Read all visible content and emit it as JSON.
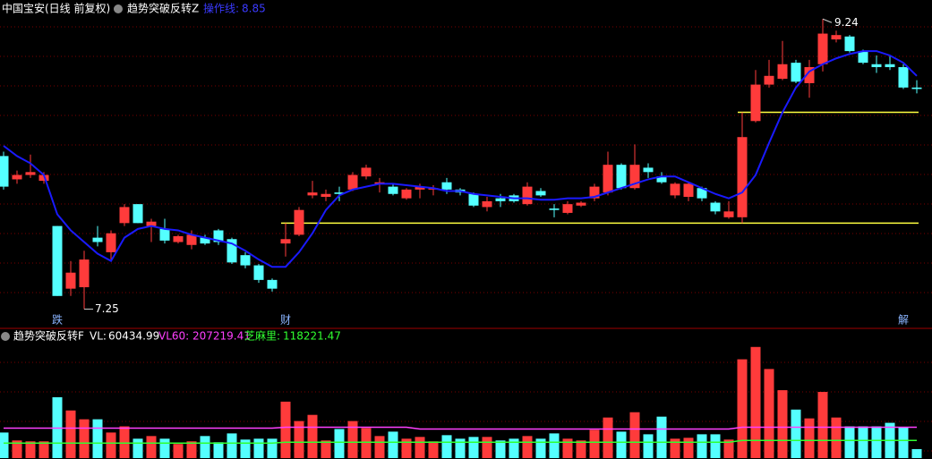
{
  "chart_data": [
    {
      "type": "candlestick",
      "title": "中国宝安(日线 前复权)",
      "indicator": "趋势突破反转Z",
      "categories": [
        null,
        null,
        null,
        null,
        "跌",
        null,
        null,
        null,
        null,
        null,
        null,
        null,
        null,
        null,
        null,
        null,
        null,
        null,
        null,
        null,
        null,
        "财",
        null,
        null,
        null,
        null,
        null,
        null,
        null,
        null,
        null,
        null,
        null,
        null,
        null,
        null,
        null,
        null,
        null,
        null,
        null,
        null,
        null,
        null,
        null,
        null,
        null,
        null,
        null,
        null,
        null,
        null,
        null,
        null,
        null,
        null,
        null,
        null,
        null,
        null,
        null,
        null,
        null,
        null,
        null,
        null,
        null,
        "解",
        null
      ],
      "open": [
        8.3,
        8.14,
        8.17,
        8.13,
        7.82,
        7.39,
        7.4,
        7.74,
        7.64,
        7.84,
        7.97,
        7.82,
        7.8,
        7.71,
        7.69,
        7.74,
        7.79,
        7.73,
        7.62,
        7.55,
        7.45,
        7.7,
        7.76,
        8.03,
        8.02,
        8.05,
        8.07,
        8.16,
        8.11,
        8.09,
        8.01,
        8.07,
        8.07,
        8.12,
        8.07,
        8.04,
        7.95,
        8.01,
        8.03,
        7.97,
        8.06,
        7.94,
        7.91,
        7.96,
        8.01,
        8.05,
        8.24,
        8.08,
        8.22,
        8.16,
        8.03,
        8.02,
        8.08,
        7.98,
        7.88,
        7.88,
        8.54,
        8.79,
        8.83,
        8.94,
        8.8,
        8.93,
        9.1,
        9.12,
        9.02,
        8.93,
        8.93,
        8.91,
        8.77
      ],
      "high": [
        8.33,
        8.2,
        8.31,
        8.19,
        7.82,
        7.58,
        7.65,
        7.82,
        7.79,
        7.97,
        7.97,
        7.87,
        7.87,
        7.76,
        7.79,
        7.76,
        7.8,
        7.74,
        7.64,
        7.56,
        7.46,
        7.84,
        7.95,
        8.13,
        8.07,
        8.09,
        8.19,
        8.24,
        8.15,
        8.11,
        8.08,
        8.11,
        8.1,
        8.15,
        8.08,
        8.05,
        8.02,
        8.04,
        8.04,
        8.12,
        8.08,
        7.97,
        7.99,
        7.99,
        8.11,
        8.33,
        8.25,
        8.38,
        8.25,
        8.19,
        8.12,
        8.12,
        8.09,
        7.99,
        7.99,
        8.6,
        8.89,
        8.96,
        9.09,
        8.96,
        8.96,
        9.24,
        9.16,
        9.13,
        9.03,
        8.99,
        8.99,
        8.93,
        8.82
      ],
      "low": [
        8.07,
        8.11,
        8.15,
        8.11,
        7.34,
        7.34,
        7.25,
        7.68,
        7.59,
        7.82,
        7.84,
        7.71,
        7.7,
        7.7,
        7.66,
        7.69,
        7.69,
        7.56,
        7.53,
        7.43,
        7.37,
        7.61,
        7.75,
        8.01,
        7.99,
        7.99,
        8.06,
        8.14,
        8.05,
        8.03,
        8.0,
        8.01,
        8.03,
        8.04,
        8.03,
        7.95,
        7.92,
        7.95,
        7.98,
        7.96,
        8.02,
        7.88,
        7.9,
        7.95,
        7.99,
        8.03,
        8.07,
        8.07,
        8.15,
        8.11,
        8.01,
        7.99,
        7.99,
        7.9,
        7.87,
        7.84,
        8.53,
        8.77,
        8.82,
        8.8,
        8.7,
        8.88,
        9.08,
        9.01,
        8.93,
        8.87,
        8.89,
        8.76,
        8.73
      ],
      "close": [
        8.09,
        8.17,
        8.19,
        8.17,
        7.34,
        7.5,
        7.59,
        7.71,
        7.77,
        7.95,
        7.84,
        7.85,
        7.72,
        7.75,
        7.76,
        7.7,
        7.71,
        7.57,
        7.55,
        7.45,
        7.39,
        7.73,
        7.93,
        8.05,
        8.04,
        8.04,
        8.17,
        8.22,
        8.12,
        8.04,
        8.07,
        8.09,
        8.08,
        8.07,
        8.05,
        7.96,
        7.99,
        7.99,
        7.99,
        8.09,
        8.03,
        7.93,
        7.97,
        7.98,
        8.09,
        8.24,
        8.08,
        8.24,
        8.19,
        8.12,
        8.11,
        8.11,
        8.01,
        7.92,
        7.92,
        8.43,
        8.79,
        8.85,
        8.93,
        8.81,
        8.91,
        9.14,
        9.13,
        9.02,
        8.94,
        8.91,
        8.91,
        8.77,
        8.76
      ],
      "up_color": "#ff3b3b",
      "down_color": "#54ffff",
      "lines": [
        {
          "name": "操作线:",
          "color": "#1a1aff",
          "values": [
            8.37,
            8.3,
            8.25,
            8.17,
            7.9,
            7.79,
            7.71,
            7.63,
            7.58,
            7.74,
            7.8,
            7.82,
            7.8,
            7.79,
            7.76,
            7.74,
            7.72,
            7.7,
            7.65,
            7.59,
            7.54,
            7.54,
            7.64,
            7.77,
            7.93,
            8.03,
            8.07,
            8.09,
            8.11,
            8.11,
            8.1,
            8.09,
            8.08,
            8.06,
            8.06,
            8.04,
            8.03,
            8.02,
            8.01,
            8.01,
            8.0,
            8.0,
            8.01,
            8.01,
            8.02,
            8.05,
            8.08,
            8.11,
            8.14,
            8.16,
            8.16,
            8.12,
            8.08,
            8.04,
            8.01,
            8.05,
            8.17,
            8.39,
            8.6,
            8.77,
            8.88,
            8.93,
            8.97,
            9.0,
            9.02,
            9.02,
            8.99,
            8.94,
            8.85
          ]
        }
      ],
      "levels": [
        {
          "value": 7.84,
          "start": 21,
          "color": "#ffff40"
        },
        {
          "value": 8.6,
          "start": 55,
          "color": "#ffff40"
        }
      ],
      "ylim": [
        7.13,
        9.26
      ]
    },
    {
      "type": "bar",
      "title": "趋势突破反转F",
      "ylim": [
        0,
        840640
      ],
      "series": [
        {
          "name": "VL:",
          "color": "#ffffff",
          "values": [
            171680,
            118400,
            112480,
            112480,
            408480,
            319680,
            260480,
            260480,
            171680,
            213120,
            130240,
            148000,
            130240,
            94720,
            112480,
            148000,
            106560,
            165760,
            124320,
            130240,
            130240,
            378880,
            248640,
            290080,
            118400,
            195360,
            248640,
            201280,
            148000,
            177600,
            130240,
            142080,
            112480,
            153920,
            130240,
            142080,
            142080,
            118400,
            130240,
            148000,
            130240,
            165760,
            130240,
            118400,
            189440,
            272320,
            177600,
            307840,
            159840,
            278240,
            130240,
            136160,
            159840,
            159840,
            124320,
            663040,
            745920,
            597920,
            455840,
            325600,
            266400,
            444000,
            272320,
            213120,
            213120,
            213120,
            236800,
            207200,
            60434.99
          ]
        },
        {
          "name": "VL60:",
          "color": "#ff40ff",
          "values": [
            201280,
            201280,
            201280,
            201280,
            201280,
            201280,
            201280,
            201280,
            201280,
            201280,
            201280,
            201280,
            201280,
            201280,
            201280,
            201280,
            201280,
            201280,
            201280,
            201280,
            201280,
            207200,
            207200,
            207200,
            207200,
            207200,
            207200,
            207200,
            207200,
            207200,
            207200,
            195360,
            195360,
            195360,
            195360,
            195360,
            195360,
            195360,
            195360,
            195360,
            195360,
            195360,
            195360,
            195360,
            195360,
            195360,
            195360,
            195360,
            195360,
            195360,
            195360,
            195360,
            195360,
            195360,
            195360,
            207200,
            207200,
            207200,
            207200,
            207200,
            207200,
            207200,
            207200,
            207200,
            207200,
            207200,
            207200,
            207200,
            207219.41
          ]
        },
        {
          "name": "芝麻里:",
          "color": "#30ff30",
          "values": [
            100640,
            100640,
            100640,
            100640,
            100640,
            100640,
            100640,
            100640,
            100640,
            100640,
            100640,
            100640,
            100640,
            100640,
            100640,
            100640,
            100640,
            100640,
            100640,
            100640,
            100640,
            106560,
            106560,
            106560,
            106560,
            106560,
            106560,
            106560,
            106560,
            106560,
            106560,
            106560,
            106560,
            106560,
            106560,
            106560,
            106560,
            106560,
            106560,
            106560,
            106560,
            106560,
            106560,
            106560,
            106560,
            106560,
            106560,
            106560,
            106560,
            106560,
            106560,
            106560,
            106560,
            106560,
            106560,
            118400,
            118400,
            118400,
            118400,
            118400,
            118400,
            118400,
            118400,
            118400,
            118400,
            118400,
            118400,
            118400,
            118221.47
          ]
        }
      ]
    }
  ]
}
